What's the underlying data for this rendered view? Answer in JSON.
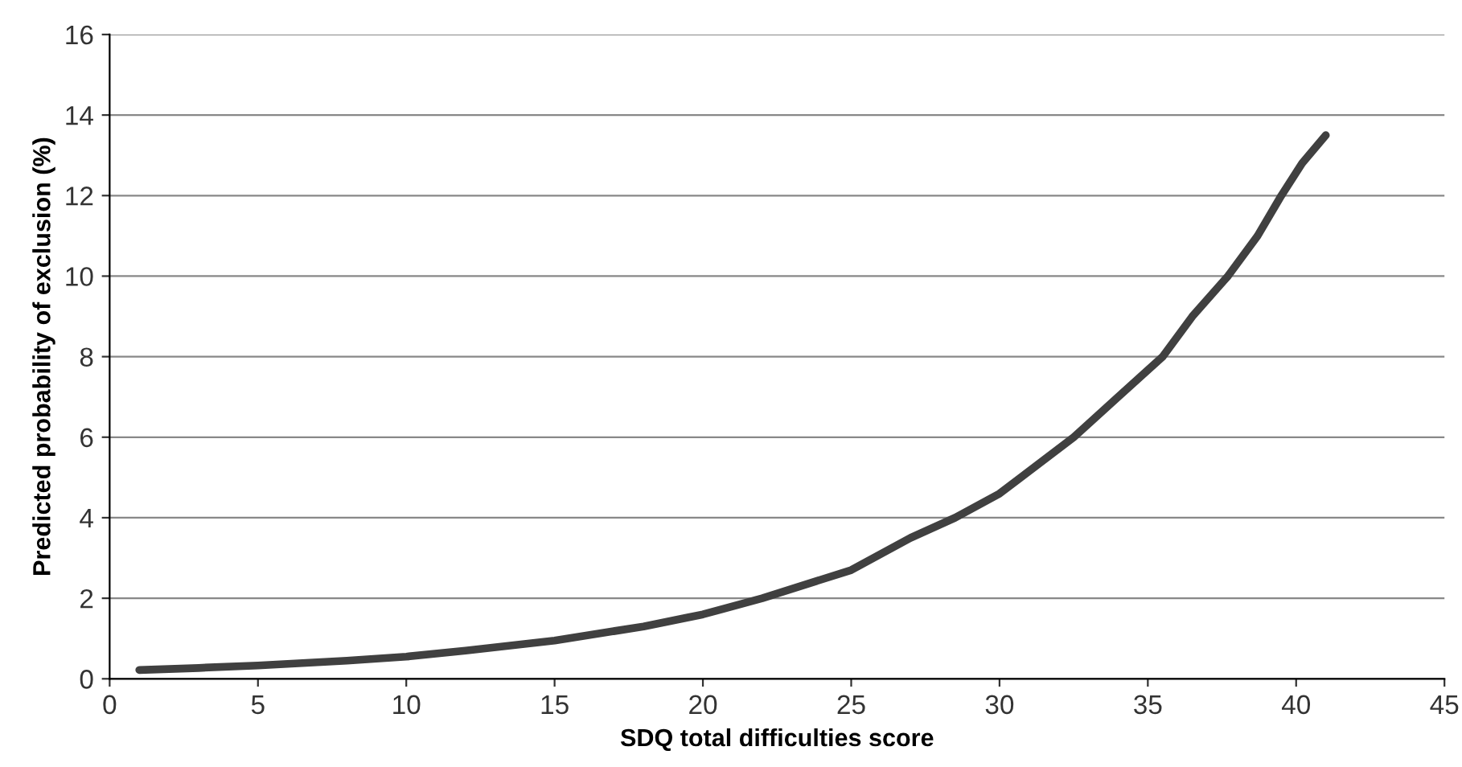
{
  "chart_data": {
    "type": "line",
    "xlabel": "SDQ total difficulties score",
    "ylabel": "Predicted probability of exclusion (%)",
    "x": [
      1,
      3,
      5,
      8,
      10,
      12,
      15,
      18,
      20,
      22,
      25,
      27,
      28.5,
      30,
      32.5,
      34,
      35.5,
      36.5,
      37.7,
      38.7,
      39.5,
      40.2,
      41
    ],
    "series": [
      {
        "color": "#404040",
        "values": [
          0.22,
          0.27,
          0.33,
          0.45,
          0.55,
          0.7,
          0.95,
          1.3,
          1.6,
          2.0,
          2.7,
          3.5,
          4.0,
          4.6,
          6.0,
          7.0,
          8.0,
          9.0,
          10.0,
          11.0,
          12.0,
          12.8,
          13.5
        ]
      }
    ],
    "xlim": [
      0,
      45
    ],
    "xticks": [
      0,
      5,
      10,
      15,
      20,
      25,
      30,
      35,
      40,
      45
    ],
    "ylim": [
      0,
      16
    ],
    "yticks": [
      0,
      2,
      4,
      6,
      8,
      10,
      12,
      14,
      16
    ],
    "grid": "y",
    "marker": "none",
    "line_style": "solid"
  }
}
